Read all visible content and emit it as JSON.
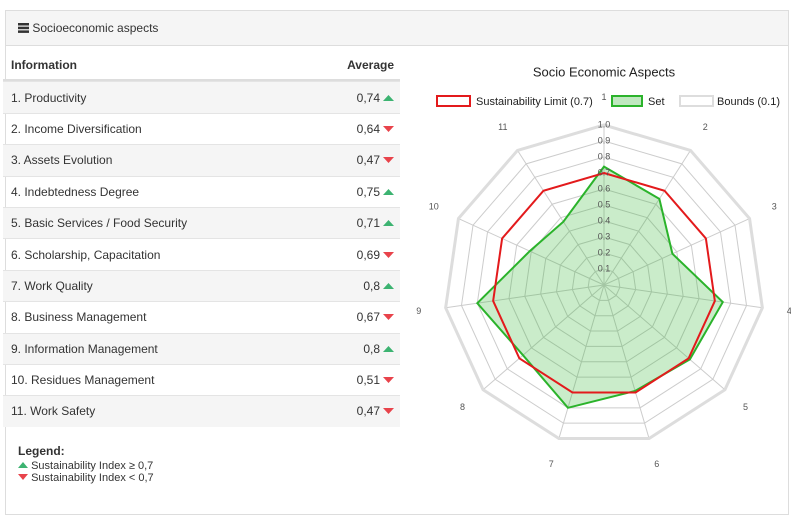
{
  "panel": {
    "title": "Socioeconomic aspects"
  },
  "table": {
    "header": [
      "Information",
      "Average"
    ],
    "rows": [
      [
        "1. Productivity",
        "0,74"
      ],
      [
        "2. Income Diversification",
        "0,64"
      ],
      [
        "3. Assets Evolution",
        "0,47"
      ],
      [
        "4. Indebtedness Degree",
        "0,75"
      ],
      [
        "5. Basic Services / Food Security",
        "0,71"
      ],
      [
        "6. Scholarship, Capacitation",
        "0,69"
      ],
      [
        "7. Work Quality",
        "0,8"
      ],
      [
        "8. Business Management",
        "0,67"
      ],
      [
        "9. Information Management",
        "0,8"
      ],
      [
        "10. Residues Management",
        "0,51"
      ],
      [
        "11. Work Safety",
        "0,47"
      ]
    ]
  },
  "legend": {
    "title": "Legend:",
    "items": [
      "Sustainability Index ≥ 0,7",
      "Sustainability Index < 0,7"
    ]
  },
  "chart_data": {
    "type": "radar",
    "title": "Socio Economic Aspects",
    "categories": [
      "1",
      "2",
      "3",
      "4",
      "5",
      "6",
      "7",
      "8",
      "9",
      "10",
      "11"
    ],
    "ylim": [
      0,
      1
    ],
    "yticks": [
      0.1,
      0.2,
      0.3,
      0.4,
      0.5,
      0.6,
      0.7,
      0.8,
      0.9,
      {
        "value": 1,
        "label": "1.0"
      }
    ],
    "series": [
      {
        "name": "Sustainability Limit (0.7)",
        "color": "#e31a1c",
        "values": [
          0.7,
          0.7,
          0.7,
          0.7,
          0.7,
          0.7,
          0.7,
          0.7,
          0.7,
          0.7,
          0.7
        ]
      },
      {
        "name": "Set",
        "color": "#2bb32b",
        "values": [
          0.74,
          0.64,
          0.47,
          0.75,
          0.71,
          0.69,
          0.8,
          0.67,
          0.8,
          0.51,
          0.47
        ]
      },
      {
        "name": "Bounds (0.1)",
        "color": "#dddddd",
        "values": [
          1,
          1,
          1,
          1,
          1,
          1,
          1,
          1,
          1,
          1,
          1
        ]
      }
    ]
  }
}
